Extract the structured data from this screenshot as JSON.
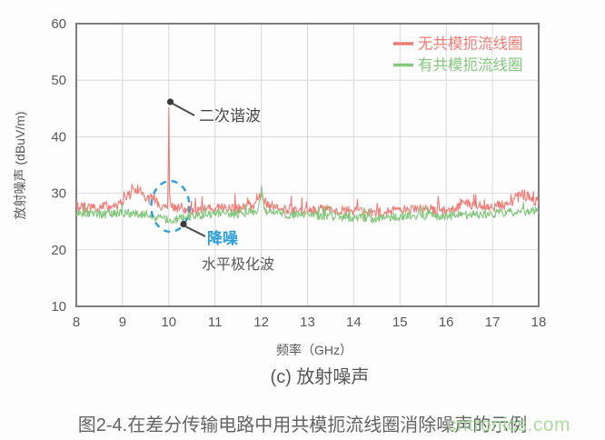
{
  "subtitle": "(c) 放射噪声",
  "caption": "图2-4.在差分传输电路中用共模扼流线圈消除噪声的示例",
  "watermark": "cntronics.com",
  "annotations": {
    "second_harmonic": "二次谐波",
    "noise_reduction": "降噪",
    "horizontal_polarization": "水平极化波",
    "circle_color": "#2b9fd9"
  },
  "chart_data": {
    "type": "line",
    "title": "(c) 放射噪声",
    "xlabel": "频率（GHz）",
    "ylabel": "放射噪声 (dBuV/m)",
    "xlim": [
      8,
      18
    ],
    "ylim": [
      10,
      60
    ],
    "xticks": [
      8,
      9,
      10,
      11,
      12,
      13,
      14,
      15,
      16,
      17,
      18
    ],
    "yticks": [
      10,
      20,
      30,
      40,
      50,
      60
    ],
    "grid": true,
    "legend_position": "top-right-inside",
    "series": [
      {
        "id": "without-choke",
        "name": "无共模扼流线圈",
        "color": "#ee7c75",
        "seed": 7,
        "noise_amp": 0.85,
        "spike_prob": 0.07,
        "spike_amp": 2.5,
        "baseline_x": [
          8,
          8.5,
          9,
          9.5,
          10,
          10.5,
          11,
          11.5,
          12,
          12.5,
          13,
          13.5,
          14,
          14.5,
          15,
          15.5,
          16,
          16.5,
          17,
          17.5,
          18
        ],
        "baseline_y": [
          27.6,
          27.2,
          27.6,
          27.6,
          27.6,
          27.0,
          27.3,
          27.2,
          28.2,
          27.2,
          27.0,
          27.2,
          26.8,
          26.6,
          27.0,
          27.2,
          27.0,
          27.6,
          27.4,
          28.4,
          28.6
        ],
        "bumps": [
          {
            "x": 8.6,
            "h": 1.0,
            "w": 0.06
          },
          {
            "x": 9.18,
            "h": 3.4,
            "w": 0.14
          },
          {
            "x": 9.4,
            "h": 2.2,
            "w": 0.09
          },
          {
            "x": 9.65,
            "h": 2.0,
            "w": 0.07
          },
          {
            "x": 12.0,
            "h": 1.6,
            "w": 0.07
          },
          {
            "x": 16.4,
            "h": 1.2,
            "w": 0.1
          },
          {
            "x": 17.65,
            "h": 1.7,
            "w": 0.12
          }
        ],
        "peaks": [
          {
            "x": 10.0,
            "y": 46.3,
            "label": "二次谐波"
          }
        ]
      },
      {
        "id": "with-choke",
        "name": "有共模扼流线圈",
        "color": "#84c77e",
        "seed": 13,
        "noise_amp": 0.75,
        "spike_prob": 0.06,
        "spike_amp": 2.0,
        "baseline_x": [
          8,
          8.5,
          9,
          9.5,
          10,
          10.5,
          11,
          11.5,
          12,
          12.5,
          13,
          13.5,
          14,
          14.5,
          15,
          15.5,
          16,
          16.5,
          17,
          17.5,
          18
        ],
        "baseline_y": [
          26.6,
          26.3,
          26.5,
          26.3,
          25.2,
          26.0,
          26.4,
          26.3,
          27.0,
          26.2,
          26.2,
          25.9,
          25.7,
          25.5,
          25.9,
          26.1,
          26.0,
          26.2,
          26.4,
          26.7,
          26.9
        ],
        "bumps": [
          {
            "x": 12.0,
            "h": 4.2,
            "w": 0.035
          }
        ],
        "peaks": []
      }
    ]
  }
}
